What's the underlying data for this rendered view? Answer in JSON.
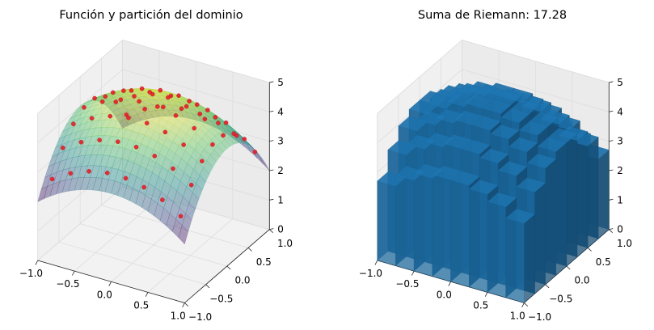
{
  "chart_data": [
    {
      "type": "surface3d",
      "title": "Función y partición del dominio",
      "function": "z = 5 - x^2 - 2*y^2",
      "domain": {
        "x": [
          -1.0,
          1.0
        ],
        "y": [
          -1.0,
          1.0
        ]
      },
      "partition": {
        "nx": 8,
        "ny": 8
      },
      "sample_points": "cell midpoints, z evaluated on the surface (red markers)",
      "x_ticks": [
        "−1.0",
        "−0.5",
        "0.0",
        "0.5",
        "1.0"
      ],
      "y_ticks": [
        "−1.0",
        "−0.5",
        "0.0",
        "0.5",
        "1.0"
      ],
      "z_ticks": [
        "0",
        "1",
        "2",
        "3",
        "4",
        "5"
      ],
      "zlim": [
        0,
        5
      ],
      "colors": {
        "surface": "viridis",
        "points": "#e8202a"
      }
    },
    {
      "type": "bar3d",
      "title": "Suma de Riemann: 17.28",
      "function": "z = 5 - x^2 - 2*y^2",
      "domain": {
        "x": [
          -1.0,
          1.0
        ],
        "y": [
          -1.0,
          1.0
        ]
      },
      "partition": {
        "nx": 8,
        "ny": 8
      },
      "riemann_sum": 17.28,
      "x_ticks": [
        "−1.0",
        "−0.5",
        "0.0",
        "0.5",
        "1.0"
      ],
      "y_ticks": [
        "−1.0",
        "−0.5",
        "0.0",
        "0.5",
        "1.0"
      ],
      "z_ticks": [
        "0",
        "1",
        "2",
        "3",
        "4",
        "5"
      ],
      "zlim": [
        0,
        5
      ],
      "colors": {
        "bars": "#1f77b4"
      }
    }
  ]
}
